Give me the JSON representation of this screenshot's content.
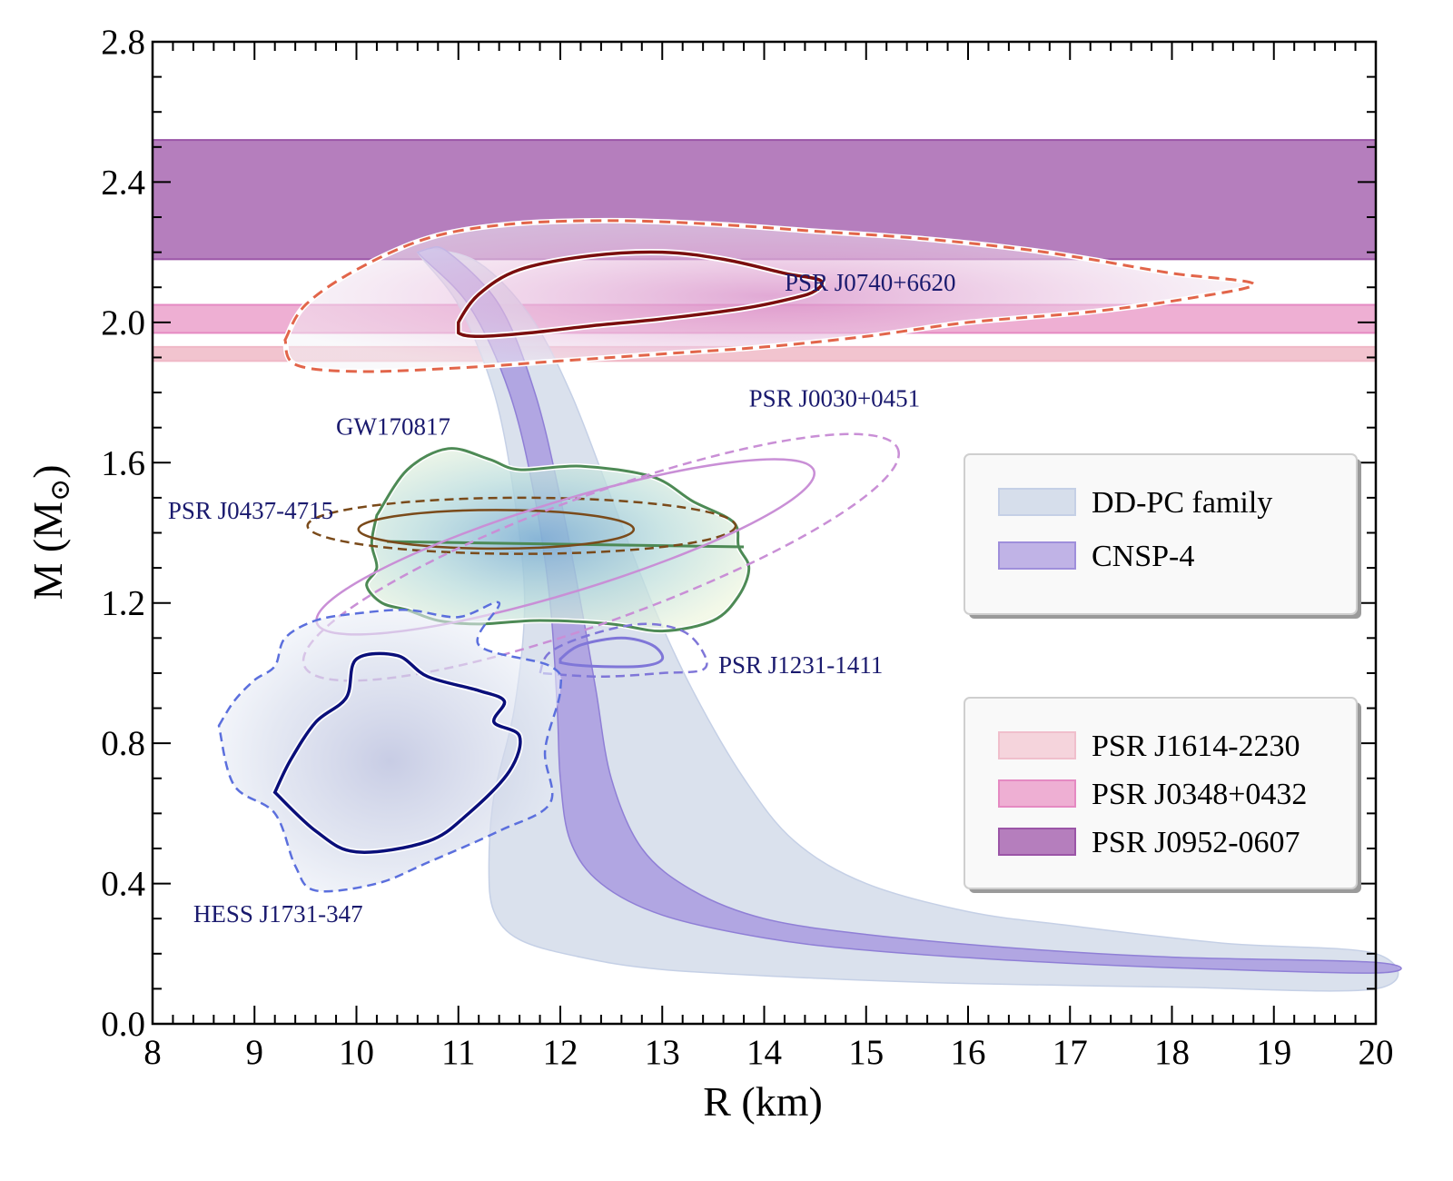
{
  "chart_data": {
    "type": "area",
    "title": "",
    "xlabel": "R (km)",
    "ylabel_main": "M (M",
    "ylabel_sub": "⊙",
    "ylabel_close": ")",
    "xlim": [
      8,
      20
    ],
    "ylim": [
      0.0,
      2.8
    ],
    "grid": false,
    "xticks": [
      "8",
      "9",
      "10",
      "11",
      "12",
      "13",
      "14",
      "15",
      "16",
      "17",
      "18",
      "19",
      "20"
    ],
    "xtick_values": [
      8,
      9,
      10,
      11,
      12,
      13,
      14,
      15,
      16,
      17,
      18,
      19,
      20
    ],
    "yticks": [
      "0.0",
      "0.4",
      "0.8",
      "1.2",
      "1.6",
      "2.0",
      "2.4",
      "2.8"
    ],
    "ytick_values": [
      0.0,
      0.4,
      0.8,
      1.2,
      1.6,
      2.0,
      2.4,
      2.8
    ],
    "mass_bands": [
      {
        "name": "PSR J1614-2230",
        "m_low": 1.89,
        "m_high": 1.93,
        "fill": "#f2c4cf",
        "edge": "#f0b8c6"
      },
      {
        "name": "PSR J0348+0432",
        "m_low": 1.97,
        "m_high": 2.05,
        "fill": "#eeafd3",
        "edge": "#e58ac2"
      },
      {
        "name": "PSR J0952-0607",
        "m_low": 2.18,
        "m_high": 2.52,
        "fill": "#b57ebd",
        "edge": "#9b55a7"
      }
    ],
    "eos_bands": [
      {
        "name": "DD-PC family",
        "fill": "#d6deeb",
        "edge": "#c5d0e6",
        "polygon": [
          [
            10.6,
            2.2
          ],
          [
            11.0,
            2.05
          ],
          [
            11.35,
            1.8
          ],
          [
            11.55,
            1.5
          ],
          [
            11.65,
            1.2
          ],
          [
            11.55,
            0.9
          ],
          [
            11.35,
            0.65
          ],
          [
            11.3,
            0.45
          ],
          [
            11.35,
            0.32
          ],
          [
            11.6,
            0.24
          ],
          [
            12.2,
            0.19
          ],
          [
            13.0,
            0.155
          ],
          [
            14.5,
            0.13
          ],
          [
            16.0,
            0.115
          ],
          [
            18.0,
            0.105
          ],
          [
            20.0,
            0.1
          ],
          [
            20.0,
            0.2
          ],
          [
            18.5,
            0.23
          ],
          [
            17.0,
            0.28
          ],
          [
            16.0,
            0.32
          ],
          [
            15.0,
            0.4
          ],
          [
            14.3,
            0.52
          ],
          [
            13.8,
            0.7
          ],
          [
            13.3,
            0.95
          ],
          [
            12.9,
            1.2
          ],
          [
            12.5,
            1.5
          ],
          [
            12.1,
            1.8
          ],
          [
            11.7,
            2.02
          ],
          [
            11.2,
            2.17
          ],
          [
            10.7,
            2.21
          ]
        ]
      },
      {
        "name": "CNSP-4",
        "fill": "#a99bdf",
        "edge": "#8f7fd6",
        "polygon": [
          [
            10.6,
            2.2
          ],
          [
            11.1,
            2.05
          ],
          [
            11.5,
            1.8
          ],
          [
            11.75,
            1.5
          ],
          [
            11.9,
            1.2
          ],
          [
            11.97,
            0.9
          ],
          [
            12.0,
            0.7
          ],
          [
            12.1,
            0.52
          ],
          [
            12.4,
            0.4
          ],
          [
            13.0,
            0.31
          ],
          [
            14.0,
            0.245
          ],
          [
            15.0,
            0.21
          ],
          [
            16.5,
            0.18
          ],
          [
            18.0,
            0.16
          ],
          [
            20.0,
            0.145
          ],
          [
            20.0,
            0.175
          ],
          [
            18.0,
            0.19
          ],
          [
            16.5,
            0.215
          ],
          [
            15.0,
            0.255
          ],
          [
            14.0,
            0.3
          ],
          [
            13.3,
            0.38
          ],
          [
            12.8,
            0.5
          ],
          [
            12.5,
            0.7
          ],
          [
            12.35,
            0.95
          ],
          [
            12.2,
            1.2
          ],
          [
            12.0,
            1.5
          ],
          [
            11.75,
            1.8
          ],
          [
            11.4,
            2.05
          ],
          [
            10.9,
            2.2
          ],
          [
            10.7,
            2.21
          ]
        ]
      }
    ],
    "constraints": [
      {
        "name": "PSR J0740+6620",
        "label": "PSR J0740+6620",
        "label_pos": [
          14.2,
          2.09
        ],
        "fill": "#e0b4da",
        "line_color": "#7a0e0e",
        "dash_color": "#e2654a",
        "outer": [
          [
            9.3,
            1.95
          ],
          [
            9.5,
            2.05
          ],
          [
            10.0,
            2.15
          ],
          [
            10.7,
            2.24
          ],
          [
            11.5,
            2.28
          ],
          [
            12.5,
            2.29
          ],
          [
            13.5,
            2.28
          ],
          [
            14.5,
            2.26
          ],
          [
            15.5,
            2.24
          ],
          [
            16.5,
            2.21
          ],
          [
            17.2,
            2.18
          ],
          [
            18.0,
            2.14
          ],
          [
            18.8,
            2.11
          ],
          [
            18.2,
            2.07
          ],
          [
            17.2,
            2.03
          ],
          [
            16.0,
            2.0
          ],
          [
            15.0,
            1.96
          ],
          [
            14.0,
            1.93
          ],
          [
            13.0,
            1.91
          ],
          [
            12.0,
            1.89
          ],
          [
            11.0,
            1.87
          ],
          [
            10.0,
            1.86
          ],
          [
            9.4,
            1.88
          ],
          [
            9.3,
            1.95
          ]
        ],
        "inner": [
          [
            11.0,
            2.0
          ],
          [
            11.2,
            2.08
          ],
          [
            11.6,
            2.15
          ],
          [
            12.3,
            2.19
          ],
          [
            13.0,
            2.2
          ],
          [
            13.6,
            2.18
          ],
          [
            14.2,
            2.14
          ],
          [
            14.55,
            2.12
          ],
          [
            14.5,
            2.09
          ],
          [
            14.3,
            2.07
          ],
          [
            13.8,
            2.04
          ],
          [
            13.0,
            2.01
          ],
          [
            12.3,
            1.99
          ],
          [
            11.7,
            1.97
          ],
          [
            11.2,
            1.96
          ],
          [
            11.0,
            1.97
          ]
        ]
      },
      {
        "name": "GW170817",
        "label": "GW170817",
        "label_pos": [
          9.8,
          1.68
        ],
        "fill": "#8db9d6",
        "line_color": "#4d8a55",
        "polygon": [
          [
            10.2,
            1.45
          ],
          [
            10.5,
            1.58
          ],
          [
            10.9,
            1.64
          ],
          [
            11.3,
            1.61
          ],
          [
            11.6,
            1.58
          ],
          [
            12.2,
            1.59
          ],
          [
            12.9,
            1.56
          ],
          [
            13.3,
            1.49
          ],
          [
            13.7,
            1.43
          ],
          [
            13.75,
            1.36
          ],
          [
            13.85,
            1.3
          ],
          [
            13.75,
            1.22
          ],
          [
            13.5,
            1.15
          ],
          [
            13.0,
            1.12
          ],
          [
            12.5,
            1.14
          ],
          [
            11.8,
            1.15
          ],
          [
            11.2,
            1.14
          ],
          [
            10.8,
            1.15
          ],
          [
            10.5,
            1.18
          ],
          [
            10.25,
            1.2
          ],
          [
            10.1,
            1.25
          ],
          [
            10.2,
            1.3
          ],
          [
            10.15,
            1.37
          ],
          [
            10.2,
            1.45
          ]
        ]
      },
      {
        "name": "PSR J0437-4715",
        "label": "PSR J0437-4715",
        "label_pos": [
          8.15,
          1.44
        ],
        "line_color": "#7a4a1a",
        "ellipse_inner": {
          "cx": 11.37,
          "cy": 1.41,
          "rx": 1.35,
          "ry": 0.055
        },
        "ellipse_outer": {
          "cx": 11.62,
          "cy": 1.42,
          "rx": 2.1,
          "ry": 0.08
        }
      },
      {
        "name": "PSR J0030+0451",
        "label": "PSR J0030+0451",
        "label_pos": [
          13.85,
          1.76
        ],
        "line_color": "#c98fd6",
        "ellipse_inner": {
          "cx": 12.05,
          "cy": 1.36,
          "rx": 2.55,
          "ry": 0.13,
          "angle_deg": -17
        },
        "ellipse_outer": {
          "cx": 12.4,
          "cy": 1.33,
          "rx": 3.1,
          "ry": 0.18,
          "angle_deg": -20
        }
      },
      {
        "name": "PSR J1231-1411",
        "label": "PSR J1231-1411",
        "label_pos": [
          13.55,
          1.0
        ],
        "line_color": "#7f76d8",
        "inner": [
          [
            12.0,
            1.04
          ],
          [
            12.2,
            1.08
          ],
          [
            12.6,
            1.1
          ],
          [
            12.9,
            1.08
          ],
          [
            13.0,
            1.04
          ],
          [
            12.8,
            1.02
          ],
          [
            12.3,
            1.02
          ],
          [
            12.0,
            1.03
          ]
        ],
        "outer": [
          [
            11.8,
            1.0
          ],
          [
            11.9,
            1.06
          ],
          [
            12.3,
            1.11
          ],
          [
            12.8,
            1.14
          ],
          [
            13.2,
            1.12
          ],
          [
            13.4,
            1.06
          ],
          [
            13.4,
            1.01
          ],
          [
            13.0,
            1.0
          ],
          [
            12.4,
            0.99
          ],
          [
            11.8,
            1.0
          ]
        ]
      },
      {
        "name": "HESS J1731-347",
        "label": "HESS J1731-347",
        "label_pos": [
          8.4,
          0.29
        ],
        "fill": "#b8bfdc",
        "line_color": "#0a0f7a",
        "dash_color": "#5b6fdd",
        "inner": [
          [
            9.2,
            0.66
          ],
          [
            9.35,
            0.75
          ],
          [
            9.6,
            0.86
          ],
          [
            9.9,
            0.93
          ],
          [
            10.0,
            1.04
          ],
          [
            10.4,
            1.05
          ],
          [
            10.7,
            0.99
          ],
          [
            11.2,
            0.95
          ],
          [
            11.45,
            0.92
          ],
          [
            11.35,
            0.86
          ],
          [
            11.6,
            0.82
          ],
          [
            11.5,
            0.72
          ],
          [
            11.1,
            0.6
          ],
          [
            10.7,
            0.52
          ],
          [
            10.0,
            0.49
          ],
          [
            9.6,
            0.55
          ],
          [
            9.2,
            0.66
          ]
        ],
        "outer": [
          [
            8.65,
            0.85
          ],
          [
            8.8,
            0.92
          ],
          [
            9.0,
            0.98
          ],
          [
            9.2,
            1.02
          ],
          [
            9.3,
            1.1
          ],
          [
            9.6,
            1.15
          ],
          [
            10.0,
            1.17
          ],
          [
            10.5,
            1.18
          ],
          [
            11.0,
            1.16
          ],
          [
            11.4,
            1.2
          ],
          [
            11.2,
            1.08
          ],
          [
            11.9,
            1.02
          ],
          [
            12.0,
            0.95
          ],
          [
            11.85,
            0.78
          ],
          [
            11.9,
            0.63
          ],
          [
            11.4,
            0.55
          ],
          [
            10.7,
            0.46
          ],
          [
            10.2,
            0.4
          ],
          [
            9.6,
            0.38
          ],
          [
            9.4,
            0.45
          ],
          [
            9.2,
            0.6
          ],
          [
            8.8,
            0.68
          ],
          [
            8.65,
            0.85
          ]
        ]
      }
    ],
    "legends": [
      {
        "position": "middle-right",
        "entries": [
          {
            "label": "DD-PC family",
            "fill": "#d6deeb",
            "edge": "#c5d0e6"
          },
          {
            "label": "CNSP-4",
            "fill": "#c0b3e6",
            "edge": "#9f8fdb"
          }
        ]
      },
      {
        "position": "lower-right",
        "entries": [
          {
            "label": "PSR J1614-2230",
            "fill": "#f5d4dc",
            "edge": "#f0bfcc"
          },
          {
            "label": "PSR J0348+0432",
            "fill": "#eeafd3",
            "edge": "#e58ac2"
          },
          {
            "label": "PSR J0952-0607",
            "fill": "#b57ebd",
            "edge": "#9b55a7"
          }
        ]
      }
    ]
  }
}
